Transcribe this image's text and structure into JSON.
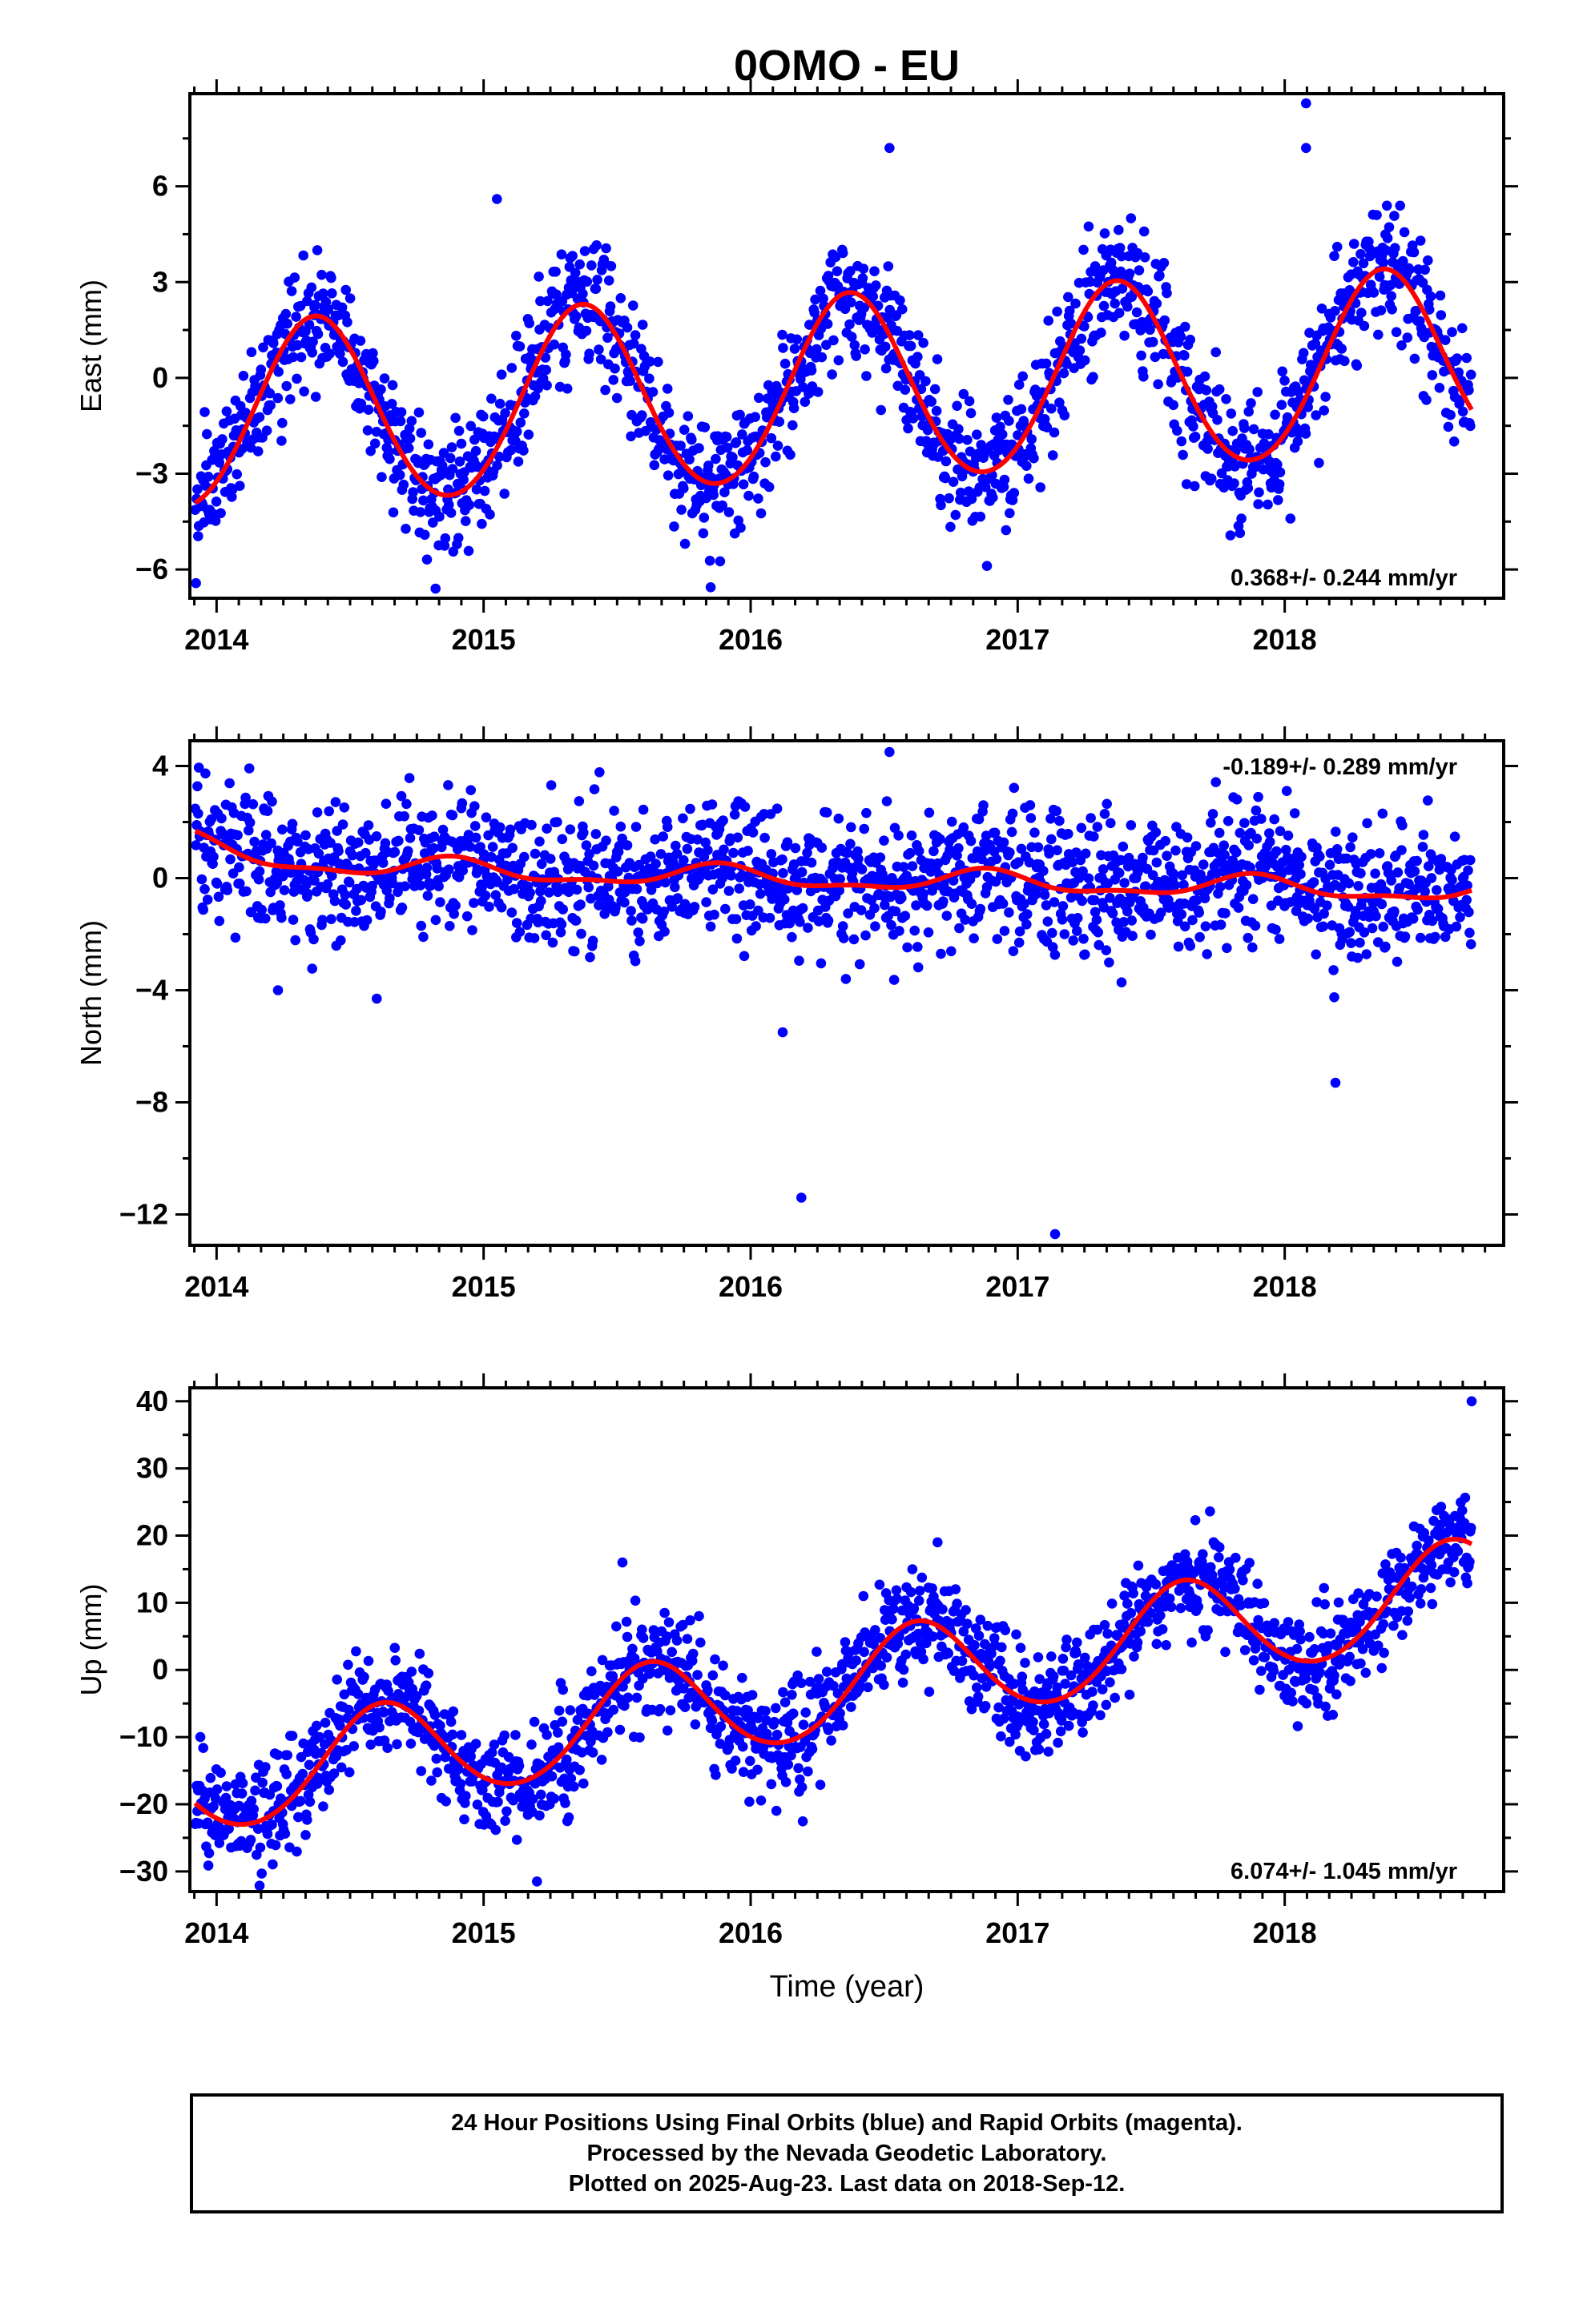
{
  "title": "0OMO - EU",
  "colors": {
    "points": "#0000ff",
    "fit": "#ff0000",
    "axis": "#000000"
  },
  "footer": {
    "line1": "24 Hour Positions Using Final Orbits (blue) and Rapid Orbits (magenta).",
    "line2": "Processed by the Nevada Geodetic Laboratory.",
    "line3": "Plotted on 2025-Aug-23. Last data on 2018-Sep-12."
  },
  "chart_data": [
    {
      "type": "scatter",
      "component": "east",
      "ylabel": "East (mm)",
      "xlim": [
        2013.9,
        2018.82
      ],
      "ylim": [
        -6.9,
        8.9
      ],
      "xticks": [
        2014,
        2015,
        2016,
        2017,
        2018
      ],
      "yticks": [
        -6,
        -3,
        0,
        3,
        6
      ],
      "rate_label": "0.368+/- 0.244 mm/yr",
      "rate_position": "bottom-right",
      "x_start": 2013.92,
      "x_end": 2018.7,
      "fit": {
        "offset": -0.4,
        "rate": 0.368,
        "ref_year": 2016.3,
        "annual_amp": 2.9,
        "peak_year": 2016.37,
        "semiannual_amp": 0.15
      },
      "noise": 1.0,
      "outliers": [
        {
          "x": 2018.08,
          "y": 8.6
        },
        {
          "x": 2018.08,
          "y": 7.2
        },
        {
          "x": 2016.52,
          "y": 7.2
        },
        {
          "x": 2015.05,
          "y": 5.6
        },
        {
          "x": 2014.82,
          "y": -6.6
        }
      ]
    },
    {
      "type": "scatter",
      "component": "north",
      "ylabel": "North (mm)",
      "xlim": [
        2013.9,
        2018.82
      ],
      "ylim": [
        -13.1,
        4.9
      ],
      "xticks": [
        2014,
        2015,
        2016,
        2017,
        2018
      ],
      "yticks": [
        -12,
        -8,
        -4,
        0,
        4
      ],
      "rate_label": "-0.189+/- 0.289 mm/yr",
      "rate_position": "top-right",
      "x_start": 2013.92,
      "x_end": 2018.7,
      "fit": {
        "offset": 0.4,
        "rate": -0.189,
        "ref_year": 2014.0,
        "annual_amp": 0.35,
        "peak_year": 2016.88,
        "semiannual_amp": 0.15,
        "decay_amp": 0.8,
        "decay_years": 0.35
      },
      "noise": 1.2,
      "outliers": [
        {
          "x": 2016.52,
          "y": 4.5
        },
        {
          "x": 2016.12,
          "y": -5.5
        },
        {
          "x": 2016.19,
          "y": -11.4
        },
        {
          "x": 2017.14,
          "y": -12.7
        },
        {
          "x": 2018.19,
          "y": -7.3
        },
        {
          "x": 2014.6,
          "y": -4.3
        },
        {
          "x": 2014.23,
          "y": -4.0
        }
      ]
    },
    {
      "type": "scatter",
      "component": "up",
      "ylabel": "Up (mm)",
      "xlabel": "Time (year)",
      "xlim": [
        2013.9,
        2018.82
      ],
      "ylim": [
        -33,
        42
      ],
      "xticks": [
        2014,
        2015,
        2016,
        2017,
        2018
      ],
      "yticks": [
        -30,
        -20,
        -10,
        0,
        10,
        20,
        30,
        40
      ],
      "rate_label": "6.074+/- 1.045 mm/yr",
      "rate_position": "bottom-right",
      "x_start": 2013.92,
      "x_end": 2018.7,
      "fit": {
        "offset": -13.0,
        "rate": 6.074,
        "ref_year": 2014.6,
        "annual_amp": 7.5,
        "peak_year": 2016.62,
        "semiannual_amp": 0.5
      },
      "noise": 3.8,
      "outliers": [
        {
          "x": 2018.7,
          "y": 40
        },
        {
          "x": 2015.2,
          "y": -31.5
        },
        {
          "x": 2016.7,
          "y": 19
        },
        {
          "x": 2015.52,
          "y": 16
        }
      ]
    }
  ]
}
